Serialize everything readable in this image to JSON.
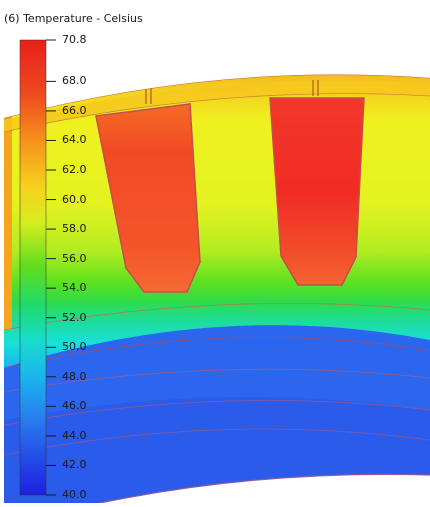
{
  "legend": {
    "title": "(6) Temperature - Celsius",
    "min": 40.0,
    "max": 70.8,
    "ticks": [
      "70.8",
      "68.0",
      "66.0",
      "64.0",
      "62.0",
      "60.0",
      "58.0",
      "56.0",
      "54.0",
      "52.0",
      "50.0",
      "48.0",
      "46.0",
      "44.0",
      "42.0",
      "40.0"
    ],
    "tick_values": [
      70.8,
      68,
      66,
      64,
      62,
      60,
      58,
      56,
      54,
      52,
      50,
      48,
      46,
      44,
      42,
      40
    ]
  },
  "colors": {
    "hot": "#f23a22",
    "warm": "#f6a31c",
    "yellow": "#e8f21e",
    "green": "#47dd1e",
    "cyan": "#1ae0d8",
    "blue": "#2866ee",
    "deep_blue": "#1a2fd8"
  }
}
